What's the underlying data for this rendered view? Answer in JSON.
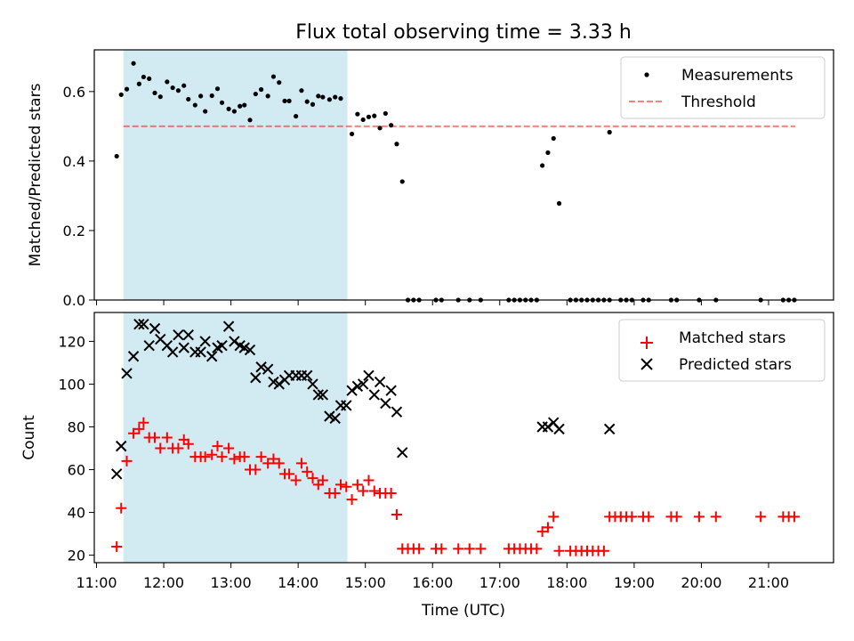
{
  "title": "Flux total observing time = 3.33 h",
  "colors": {
    "shade": "#add8e6",
    "threshold": "#ff0000",
    "matched": "#ff0000",
    "predicted": "#000000",
    "measurement": "#000000"
  },
  "chart_data": [
    {
      "type": "scatter",
      "panel": "top",
      "ylabel": "Matched/Predicted stars",
      "ylim": [
        0,
        0.72
      ],
      "yticks": [
        "0.0",
        "0.2",
        "0.4",
        "0.6"
      ],
      "xlim": [
        "10:58",
        "21:58"
      ],
      "shaded_interval": [
        "11:24",
        "14:44"
      ],
      "legend": {
        "position": "top-right",
        "entries": [
          "Measurements",
          "Threshold"
        ]
      },
      "threshold": {
        "name": "Threshold",
        "y": 0.5,
        "x": [
          "11:24",
          "21:24"
        ]
      },
      "series": [
        {
          "name": "Measurements",
          "points": [
            [
              "11:18",
              0.414
            ],
            [
              "11:22",
              0.591
            ],
            [
              "11:27",
              0.607
            ],
            [
              "11:33",
              0.681
            ],
            [
              "11:38",
              0.622
            ],
            [
              "11:42",
              0.642
            ],
            [
              "11:47",
              0.637
            ],
            [
              "11:52",
              0.596
            ],
            [
              "11:57",
              0.585
            ],
            [
              "12:03",
              0.628
            ],
            [
              "12:08",
              0.611
            ],
            [
              "12:13",
              0.603
            ],
            [
              "12:18",
              0.617
            ],
            [
              "12:22",
              0.578
            ],
            [
              "12:28",
              0.561
            ],
            [
              "12:33",
              0.587
            ],
            [
              "12:37",
              0.543
            ],
            [
              "12:43",
              0.588
            ],
            [
              "12:48",
              0.608
            ],
            [
              "12:52",
              0.568
            ],
            [
              "12:58",
              0.55
            ],
            [
              "13:03",
              0.543
            ],
            [
              "13:08",
              0.558
            ],
            [
              "13:12",
              0.561
            ],
            [
              "13:17",
              0.518
            ],
            [
              "13:22",
              0.593
            ],
            [
              "13:27",
              0.606
            ],
            [
              "13:33",
              0.587
            ],
            [
              "13:38",
              0.643
            ],
            [
              "13:43",
              0.626
            ],
            [
              "13:48",
              0.573
            ],
            [
              "13:52",
              0.573
            ],
            [
              "13:58",
              0.529
            ],
            [
              "14:03",
              0.603
            ],
            [
              "14:08",
              0.571
            ],
            [
              "14:13",
              0.563
            ],
            [
              "14:18",
              0.587
            ],
            [
              "14:22",
              0.584
            ],
            [
              "14:28",
              0.577
            ],
            [
              "14:33",
              0.584
            ],
            [
              "14:38",
              0.58
            ],
            [
              "14:48",
              0.478
            ],
            [
              "14:53",
              0.535
            ],
            [
              "14:58",
              0.519
            ],
            [
              "15:03",
              0.527
            ],
            [
              "15:08",
              0.53
            ],
            [
              "15:13",
              0.495
            ],
            [
              "15:18",
              0.537
            ],
            [
              "15:23",
              0.503
            ],
            [
              "15:28",
              0.449
            ],
            [
              "15:33",
              0.341
            ],
            [
              "15:38",
              0
            ],
            [
              "15:43",
              0
            ],
            [
              "15:48",
              0
            ],
            [
              "16:03",
              0
            ],
            [
              "16:08",
              0
            ],
            [
              "16:23",
              0
            ],
            [
              "16:33",
              0
            ],
            [
              "16:43",
              0
            ],
            [
              "17:08",
              0
            ],
            [
              "17:13",
              0
            ],
            [
              "17:18",
              0
            ],
            [
              "17:23",
              0
            ],
            [
              "17:28",
              0
            ],
            [
              "17:33",
              0
            ],
            [
              "17:38",
              0.387
            ],
            [
              "17:43",
              0.424
            ],
            [
              "17:48",
              0.465
            ],
            [
              "17:53",
              0.278
            ],
            [
              "18:03",
              0
            ],
            [
              "18:08",
              0
            ],
            [
              "18:13",
              0
            ],
            [
              "18:18",
              0
            ],
            [
              "18:23",
              0
            ],
            [
              "18:28",
              0
            ],
            [
              "18:33",
              0
            ],
            [
              "18:38",
              0
            ],
            [
              "18:48",
              0
            ],
            [
              "18:53",
              0
            ],
            [
              "18:58",
              0
            ],
            [
              "19:08",
              0
            ],
            [
              "19:13",
              0
            ],
            [
              "19:33",
              0
            ],
            [
              "19:38",
              0
            ],
            [
              "19:58",
              0
            ],
            [
              "20:13",
              0
            ],
            [
              "20:53",
              0
            ],
            [
              "21:13",
              0
            ],
            [
              "21:18",
              0
            ],
            [
              "21:23",
              0
            ],
            [
              "18:38",
              0.483
            ]
          ]
        }
      ]
    },
    {
      "type": "scatter",
      "panel": "bottom",
      "xlabel": "Time (UTC)",
      "ylabel": "Count",
      "ylim": [
        16.5,
        133.5
      ],
      "yticks": [
        "20",
        "40",
        "60",
        "80",
        "100",
        "120"
      ],
      "xlim": [
        "10:58",
        "21:58"
      ],
      "xticks": [
        "11:00",
        "12:00",
        "13:00",
        "14:00",
        "15:00",
        "16:00",
        "17:00",
        "18:00",
        "19:00",
        "20:00",
        "21:00"
      ],
      "shaded_interval": [
        "11:24",
        "14:44"
      ],
      "legend": {
        "position": "top-right",
        "entries": [
          "Matched stars",
          "Predicted stars"
        ]
      },
      "series": [
        {
          "name": "Matched stars",
          "marker": "plus",
          "points": [
            [
              "11:18",
              24
            ],
            [
              "11:22",
              42
            ],
            [
              "11:27",
              64
            ],
            [
              "11:33",
              77
            ],
            [
              "11:38",
              79
            ],
            [
              "11:42",
              82
            ],
            [
              "11:47",
              75
            ],
            [
              "11:52",
              75
            ],
            [
              "11:57",
              70
            ],
            [
              "12:03",
              75
            ],
            [
              "12:08",
              70
            ],
            [
              "12:13",
              70
            ],
            [
              "12:18",
              74
            ],
            [
              "12:22",
              72
            ],
            [
              "12:28",
              66
            ],
            [
              "12:33",
              66
            ],
            [
              "12:37",
              66
            ],
            [
              "12:43",
              67
            ],
            [
              "12:48",
              71
            ],
            [
              "12:52",
              66
            ],
            [
              "12:58",
              70
            ],
            [
              "13:03",
              65
            ],
            [
              "13:08",
              66
            ],
            [
              "13:12",
              66
            ],
            [
              "13:17",
              60
            ],
            [
              "13:22",
              60
            ],
            [
              "13:27",
              66
            ],
            [
              "13:33",
              63
            ],
            [
              "13:38",
              65
            ],
            [
              "13:43",
              63
            ],
            [
              "13:48",
              58
            ],
            [
              "13:52",
              58
            ],
            [
              "13:58",
              55
            ],
            [
              "14:03",
              63
            ],
            [
              "14:08",
              59
            ],
            [
              "14:13",
              56
            ],
            [
              "14:18",
              53
            ],
            [
              "14:22",
              55
            ],
            [
              "14:28",
              49
            ],
            [
              "14:33",
              49
            ],
            [
              "14:38",
              53
            ],
            [
              "14:43",
              52
            ],
            [
              "14:48",
              46
            ],
            [
              "14:53",
              53
            ],
            [
              "14:58",
              50
            ],
            [
              "15:03",
              55
            ],
            [
              "15:08",
              50
            ],
            [
              "15:13",
              49
            ],
            [
              "15:18",
              49
            ],
            [
              "15:23",
              49
            ],
            [
              "15:28",
              39
            ],
            [
              "15:33",
              23
            ],
            [
              "15:38",
              23
            ],
            [
              "15:43",
              23
            ],
            [
              "15:48",
              23
            ],
            [
              "16:03",
              23
            ],
            [
              "16:08",
              23
            ],
            [
              "16:23",
              23
            ],
            [
              "16:33",
              23
            ],
            [
              "16:43",
              23
            ],
            [
              "17:08",
              23
            ],
            [
              "17:13",
              23
            ],
            [
              "17:18",
              23
            ],
            [
              "17:23",
              23
            ],
            [
              "17:28",
              23
            ],
            [
              "17:33",
              23
            ],
            [
              "17:38",
              31
            ],
            [
              "17:43",
              33
            ],
            [
              "17:48",
              38
            ],
            [
              "17:53",
              22
            ],
            [
              "18:03",
              22
            ],
            [
              "18:08",
              22
            ],
            [
              "18:13",
              22
            ],
            [
              "18:18",
              22
            ],
            [
              "18:23",
              22
            ],
            [
              "18:28",
              22
            ],
            [
              "18:33",
              22
            ],
            [
              "18:38",
              38
            ],
            [
              "18:43",
              38
            ],
            [
              "18:48",
              38
            ],
            [
              "18:53",
              38
            ],
            [
              "18:58",
              38
            ],
            [
              "19:08",
              38
            ],
            [
              "19:13",
              38
            ],
            [
              "19:33",
              38
            ],
            [
              "19:38",
              38
            ],
            [
              "19:58",
              38
            ],
            [
              "20:13",
              38
            ],
            [
              "20:53",
              38
            ],
            [
              "21:13",
              38
            ],
            [
              "21:18",
              38
            ],
            [
              "21:23",
              38
            ]
          ]
        },
        {
          "name": "Predicted stars",
          "marker": "x",
          "points": [
            [
              "11:18",
              58
            ],
            [
              "11:22",
              71
            ],
            [
              "11:27",
              105
            ],
            [
              "11:33",
              113
            ],
            [
              "11:38",
              128
            ],
            [
              "11:42",
              128
            ],
            [
              "11:47",
              118
            ],
            [
              "11:52",
              126
            ],
            [
              "11:57",
              121
            ],
            [
              "12:03",
              118
            ],
            [
              "12:08",
              115
            ],
            [
              "12:13",
              123
            ],
            [
              "12:18",
              117
            ],
            [
              "12:22",
              123
            ],
            [
              "12:28",
              115
            ],
            [
              "12:33",
              115
            ],
            [
              "12:37",
              120
            ],
            [
              "12:43",
              113
            ],
            [
              "12:48",
              117
            ],
            [
              "12:52",
              118
            ],
            [
              "12:58",
              127
            ],
            [
              "13:03",
              120
            ],
            [
              "13:08",
              118
            ],
            [
              "13:12",
              117
            ],
            [
              "13:17",
              116
            ],
            [
              "13:22",
              103
            ],
            [
              "13:27",
              108
            ],
            [
              "13:33",
              107
            ],
            [
              "13:38",
              101
            ],
            [
              "13:43",
              100
            ],
            [
              "13:48",
              102
            ],
            [
              "13:52",
              104
            ],
            [
              "13:58",
              104
            ],
            [
              "14:03",
              104
            ],
            [
              "14:08",
              104
            ],
            [
              "14:13",
              100
            ],
            [
              "14:18",
              95
            ],
            [
              "14:22",
              95
            ],
            [
              "14:28",
              85
            ],
            [
              "14:33",
              84
            ],
            [
              "14:38",
              90
            ],
            [
              "14:43",
              90
            ],
            [
              "14:48",
              97
            ],
            [
              "14:53",
              99
            ],
            [
              "14:58",
              100
            ],
            [
              "15:03",
              104
            ],
            [
              "15:08",
              95
            ],
            [
              "15:13",
              101
            ],
            [
              "15:18",
              91
            ],
            [
              "15:23",
              97
            ],
            [
              "15:28",
              87
            ],
            [
              "15:33",
              68
            ],
            [
              "17:38",
              80
            ],
            [
              "17:43",
              80
            ],
            [
              "17:48",
              82
            ],
            [
              "17:53",
              79
            ],
            [
              "18:38",
              79
            ]
          ]
        }
      ]
    }
  ]
}
